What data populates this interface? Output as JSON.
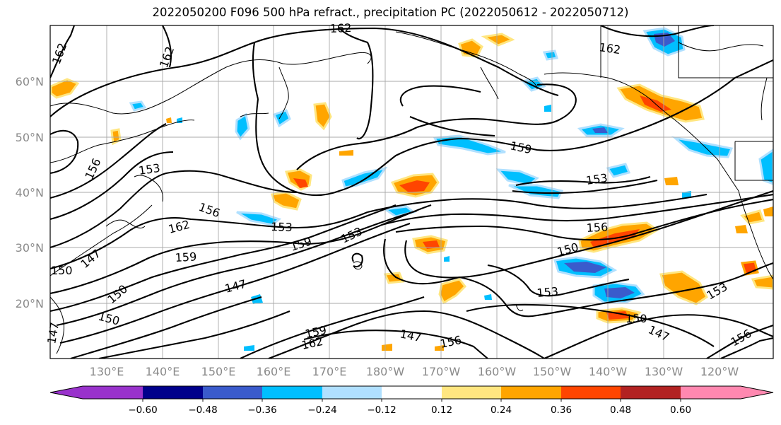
{
  "title": "2022050200 F096 500 hPa refract., precipitation PC (2022050612 - 2022050712)",
  "lat_labels": [
    "60°N",
    "50°N",
    "40°N",
    "30°N",
    "20°N"
  ],
  "lon_labels": [
    "130°E",
    "140°E",
    "150°E",
    "160°E",
    "170°E",
    "180°W",
    "170°W",
    "160°W",
    "150°W",
    "140°W",
    "130°W",
    "120°W"
  ],
  "contour_labels": [
    "162",
    "162",
    "162",
    "162",
    "159",
    "153",
    "156",
    "153",
    "156",
    "153",
    "162",
    "159",
    "153",
    "147",
    "156",
    "159",
    "150",
    "150",
    "147",
    "150",
    "150",
    "147",
    "159",
    "162",
    "147",
    "156",
    "153",
    "150",
    "147",
    "153",
    "156"
  ],
  "colorbar": {
    "colors": [
      "#9932cc",
      "#00008b",
      "#3a5bcc",
      "#00bfff",
      "#b0e0ff",
      "#ffffff",
      "#ffe680",
      "#ffa500",
      "#ff4500",
      "#b22222",
      "#ff88b0"
    ],
    "tick_labels": [
      "−0.60",
      "−0.48",
      "−0.36",
      "−0.24",
      "−0.12",
      "0.12",
      "0.24",
      "0.36",
      "0.48",
      "0.60"
    ]
  }
}
